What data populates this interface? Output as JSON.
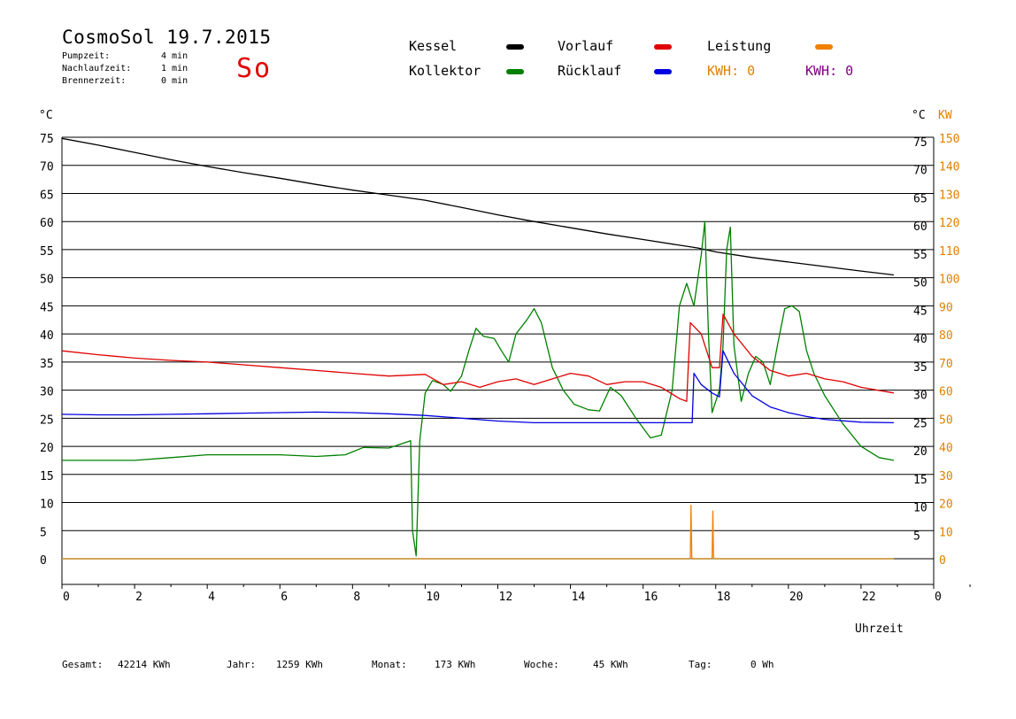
{
  "header": {
    "title": "CosmoSol 19.7.2015",
    "weekday": "So",
    "stats": [
      {
        "label": "Pumpzeit:",
        "value": "4 min"
      },
      {
        "label": "Nachlaufzeit:",
        "value": "1 min"
      },
      {
        "label": "Brennerzeit:",
        "value": "0 min"
      }
    ]
  },
  "legend": {
    "kessel": {
      "label": "Kessel",
      "color": "#000000"
    },
    "kollektor": {
      "label": "Kollektor",
      "color": "#008000"
    },
    "vorlauf": {
      "label": "Vorlauf",
      "color": "#e00000"
    },
    "ruecklauf": {
      "label": "Rücklauf",
      "color": "#0000e0"
    },
    "leistung": {
      "label": "Leistung",
      "color": "#f08000"
    },
    "kwh1": {
      "text": "KWH: 0",
      "color": "#e08000"
    },
    "kwh2": {
      "text": "KWH: 0",
      "color": "#800080"
    }
  },
  "footer": {
    "gesamt": {
      "label": "Gesamt:",
      "value": "42214 KWh"
    },
    "jahr": {
      "label": "Jahr:",
      "value": "1259 KWh"
    },
    "monat": {
      "label": "Monat:",
      "value": "173 KWh"
    },
    "woche": {
      "label": "Woche:",
      "value": "45 KWh"
    },
    "tag": {
      "label": "Tag:",
      "value": "0 Wh"
    }
  },
  "chart_data": {
    "type": "line",
    "xlabel": "Uhrzeit",
    "ylabel_left": "°C",
    "ylabel_right": "°C",
    "ylabel_right2": "KW",
    "xlim": [
      0,
      24
    ],
    "ylim": [
      0,
      75
    ],
    "ylim_right2": [
      0,
      150
    ],
    "x_ticks": [
      "0",
      "2",
      "4",
      "6",
      "8",
      "10",
      "12",
      "14",
      "16",
      "18",
      "20",
      "22",
      "0"
    ],
    "y_ticks": [
      "0",
      "5",
      "10",
      "15",
      "20",
      "25",
      "30",
      "35",
      "40",
      "45",
      "50",
      "55",
      "60",
      "65",
      "70",
      "75"
    ],
    "y_ticks_right": [
      "",
      "5",
      "10",
      "15",
      "20",
      "25",
      "30",
      "35",
      "40",
      "45",
      "50",
      "55",
      "60",
      "65",
      "70",
      "75"
    ],
    "y2_ticks": [
      "0",
      "10",
      "20",
      "30",
      "40",
      "50",
      "60",
      "70",
      "80",
      "90",
      "100",
      "110",
      "120",
      "130",
      "140",
      "150"
    ],
    "grid": true,
    "series": [
      {
        "name": "Kessel",
        "color": "#000000",
        "points": [
          [
            0,
            74.8
          ],
          [
            1,
            73.6
          ],
          [
            2,
            72.3
          ],
          [
            3,
            71.0
          ],
          [
            4,
            69.8
          ],
          [
            5,
            68.7
          ],
          [
            6,
            67.7
          ],
          [
            7,
            66.6
          ],
          [
            8,
            65.6
          ],
          [
            9,
            64.7
          ],
          [
            10,
            63.8
          ],
          [
            11,
            62.5
          ],
          [
            12,
            61.2
          ],
          [
            13,
            60.0
          ],
          [
            14,
            58.9
          ],
          [
            15,
            57.8
          ],
          [
            16,
            56.8
          ],
          [
            17,
            55.8
          ],
          [
            17.5,
            55.3
          ],
          [
            18,
            54.6
          ],
          [
            19,
            53.6
          ],
          [
            20,
            52.8
          ],
          [
            21,
            52.0
          ],
          [
            22,
            51.2
          ],
          [
            22.9,
            50.5
          ]
        ]
      },
      {
        "name": "Kollektor",
        "color": "#008000",
        "points": [
          [
            0,
            17.5
          ],
          [
            1,
            17.5
          ],
          [
            2,
            17.5
          ],
          [
            3,
            18.0
          ],
          [
            4,
            18.5
          ],
          [
            5,
            18.5
          ],
          [
            6,
            18.5
          ],
          [
            7,
            18.2
          ],
          [
            7.8,
            18.5
          ],
          [
            8.3,
            19.8
          ],
          [
            9,
            19.7
          ],
          [
            9.6,
            21.0
          ],
          [
            9.65,
            5.0
          ],
          [
            9.75,
            0.5
          ],
          [
            9.85,
            21.0
          ],
          [
            10,
            29.5
          ],
          [
            10.2,
            31.7
          ],
          [
            10.5,
            31.0
          ],
          [
            10.7,
            29.8
          ],
          [
            11,
            32.5
          ],
          [
            11.2,
            37.0
          ],
          [
            11.4,
            41.0
          ],
          [
            11.6,
            39.6
          ],
          [
            11.9,
            39.2
          ],
          [
            12.1,
            37.0
          ],
          [
            12.3,
            35.0
          ],
          [
            12.5,
            40.0
          ],
          [
            12.8,
            42.5
          ],
          [
            13,
            44.5
          ],
          [
            13.2,
            42.0
          ],
          [
            13.5,
            34.0
          ],
          [
            13.8,
            30.0
          ],
          [
            14.1,
            27.5
          ],
          [
            14.5,
            26.5
          ],
          [
            14.8,
            26.3
          ],
          [
            15.1,
            30.5
          ],
          [
            15.4,
            29.0
          ],
          [
            15.8,
            25.0
          ],
          [
            16.2,
            21.5
          ],
          [
            16.5,
            22.0
          ],
          [
            16.8,
            30.0
          ],
          [
            17.0,
            45.0
          ],
          [
            17.2,
            49.0
          ],
          [
            17.4,
            45.0
          ],
          [
            17.6,
            54.0
          ],
          [
            17.7,
            60.0
          ],
          [
            17.8,
            40.0
          ],
          [
            17.9,
            26.0
          ],
          [
            18.1,
            30.0
          ],
          [
            18.2,
            38.0
          ],
          [
            18.3,
            55.0
          ],
          [
            18.4,
            59.0
          ],
          [
            18.5,
            38.0
          ],
          [
            18.7,
            28.0
          ],
          [
            18.9,
            33.0
          ],
          [
            19.1,
            36.0
          ],
          [
            19.3,
            35.0
          ],
          [
            19.5,
            31.0
          ],
          [
            19.7,
            38.0
          ],
          [
            19.9,
            44.5
          ],
          [
            20.1,
            45.0
          ],
          [
            20.3,
            44.0
          ],
          [
            20.5,
            37.0
          ],
          [
            20.7,
            33.0
          ],
          [
            21.0,
            29.0
          ],
          [
            21.5,
            24.0
          ],
          [
            22.0,
            20.0
          ],
          [
            22.5,
            18.0
          ],
          [
            22.9,
            17.5
          ]
        ]
      },
      {
        "name": "Vorlauf",
        "color": "#e00000",
        "points": [
          [
            0,
            37.0
          ],
          [
            1,
            36.3
          ],
          [
            2,
            35.7
          ],
          [
            3,
            35.3
          ],
          [
            4,
            35.0
          ],
          [
            5,
            34.5
          ],
          [
            6,
            34.0
          ],
          [
            7,
            33.5
          ],
          [
            8,
            33.0
          ],
          [
            9,
            32.5
          ],
          [
            10,
            32.8
          ],
          [
            10.5,
            31.0
          ],
          [
            11,
            31.5
          ],
          [
            11.5,
            30.5
          ],
          [
            12,
            31.5
          ],
          [
            12.5,
            32.0
          ],
          [
            13,
            31.0
          ],
          [
            13.5,
            32.0
          ],
          [
            14,
            33.0
          ],
          [
            14.5,
            32.5
          ],
          [
            15,
            31.0
          ],
          [
            15.5,
            31.5
          ],
          [
            16,
            31.5
          ],
          [
            16.5,
            30.5
          ],
          [
            17,
            28.5
          ],
          [
            17.2,
            28.0
          ],
          [
            17.3,
            42.0
          ],
          [
            17.6,
            40.0
          ],
          [
            17.9,
            34.0
          ],
          [
            18.1,
            34.0
          ],
          [
            18.2,
            43.5
          ],
          [
            18.5,
            40.0
          ],
          [
            19,
            36.0
          ],
          [
            19.5,
            33.5
          ],
          [
            20,
            32.5
          ],
          [
            20.5,
            33.0
          ],
          [
            21,
            32.0
          ],
          [
            21.5,
            31.5
          ],
          [
            22,
            30.5
          ],
          [
            22.9,
            29.5
          ]
        ]
      },
      {
        "name": "Rücklauf",
        "color": "#0000e0",
        "points": [
          [
            0,
            25.7
          ],
          [
            1,
            25.6
          ],
          [
            2,
            25.6
          ],
          [
            3,
            25.7
          ],
          [
            4,
            25.8
          ],
          [
            5,
            25.9
          ],
          [
            6,
            26.0
          ],
          [
            7,
            26.1
          ],
          [
            8,
            26.0
          ],
          [
            9,
            25.8
          ],
          [
            10,
            25.5
          ],
          [
            11,
            25.0
          ],
          [
            12,
            24.5
          ],
          [
            13,
            24.2
          ],
          [
            14,
            24.2
          ],
          [
            15,
            24.2
          ],
          [
            16,
            24.2
          ],
          [
            17,
            24.2
          ],
          [
            17.35,
            24.2
          ],
          [
            17.4,
            33.0
          ],
          [
            17.6,
            31.0
          ],
          [
            17.9,
            29.5
          ],
          [
            18.1,
            28.8
          ],
          [
            18.2,
            37.0
          ],
          [
            18.5,
            33.0
          ],
          [
            19,
            29.0
          ],
          [
            19.5,
            27.0
          ],
          [
            20,
            26.0
          ],
          [
            20.5,
            25.3
          ],
          [
            21,
            24.8
          ],
          [
            22,
            24.3
          ],
          [
            22.9,
            24.2
          ]
        ]
      },
      {
        "name": "Leistung",
        "color": "#f08000",
        "points": [
          [
            0,
            0
          ],
          [
            17.3,
            0
          ],
          [
            17.32,
            9.5
          ],
          [
            17.34,
            0
          ],
          [
            17.9,
            0
          ],
          [
            17.92,
            8.5
          ],
          [
            17.94,
            0
          ],
          [
            22.9,
            0
          ]
        ]
      }
    ]
  }
}
